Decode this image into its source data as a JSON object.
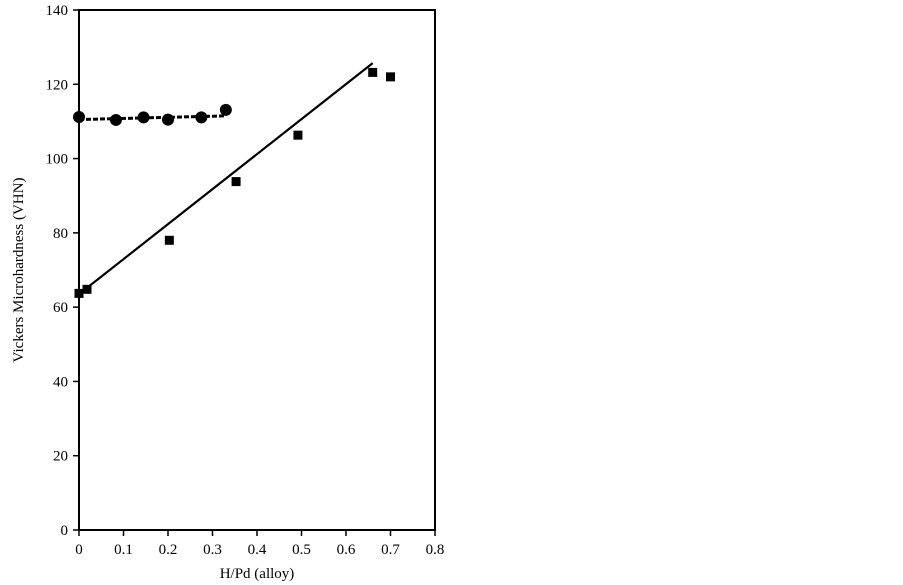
{
  "chart_data": {
    "type": "scatter",
    "title": "",
    "xlabel": "H/Pd (alloy)",
    "ylabel": "Vickers Microhardness (VHN)",
    "xlim": [
      0,
      0.8
    ],
    "ylim": [
      0,
      140
    ],
    "x_ticks": [
      0,
      0.1,
      0.2,
      0.3,
      0.4,
      0.5,
      0.6,
      0.7,
      0.8
    ],
    "x_tick_labels": [
      "0",
      "0.1",
      "0.2",
      "0.3",
      "0.4",
      "0.5",
      "0.6",
      "0.7",
      "0.8"
    ],
    "y_ticks": [
      0,
      20,
      40,
      60,
      80,
      100,
      120,
      140
    ],
    "y_tick_labels": [
      "0",
      "20",
      "40",
      "60",
      "80",
      "100",
      "120",
      "140"
    ],
    "grid": false,
    "legend": "none",
    "series": [
      {
        "marker": "circle",
        "color": "#000000",
        "points": [
          [
            0.0,
            111.2
          ],
          [
            0.083,
            110.4
          ],
          [
            0.145,
            111.1
          ],
          [
            0.2,
            110.5
          ],
          [
            0.275,
            111.1
          ],
          [
            0.33,
            113.1
          ]
        ],
        "fit": {
          "style": "dashed",
          "x": [
            0.0,
            0.33
          ],
          "y": [
            110.5,
            111.5
          ]
        }
      },
      {
        "marker": "square",
        "color": "#000000",
        "points": [
          [
            0.0,
            63.7
          ],
          [
            0.018,
            64.8
          ],
          [
            0.203,
            78.0
          ],
          [
            0.353,
            93.8
          ],
          [
            0.492,
            106.3
          ],
          [
            0.66,
            123.2
          ],
          [
            0.7,
            122.0
          ]
        ],
        "fit": {
          "style": "solid",
          "x": [
            0.0,
            0.66
          ],
          "y": [
            63.5,
            125.7
          ]
        }
      }
    ]
  }
}
